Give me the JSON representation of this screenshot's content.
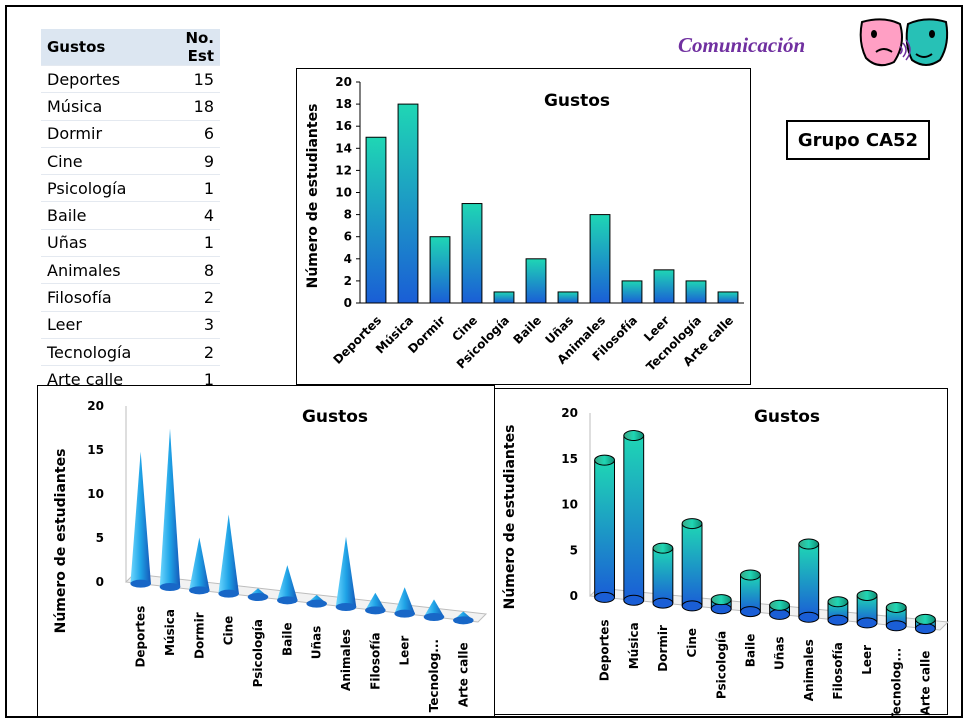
{
  "header": {
    "title": "Comunicación"
  },
  "group_label": "Grupo CA52",
  "table": {
    "headers": [
      "Gustos",
      "No. Est"
    ],
    "rows": [
      [
        "Deportes",
        "15"
      ],
      [
        "Música",
        "18"
      ],
      [
        "Dormir",
        "6"
      ],
      [
        "Cine",
        "9"
      ],
      [
        "Psicología",
        "1"
      ],
      [
        "Baile",
        "4"
      ],
      [
        "Uñas",
        "1"
      ],
      [
        "Animales",
        "8"
      ],
      [
        "Filosofía",
        "2"
      ],
      [
        "Leer",
        "3"
      ],
      [
        "Tecnología",
        "2"
      ],
      [
        "Arte calle",
        "1"
      ]
    ]
  },
  "colors": {
    "bar_top": "#1fd6b4",
    "bar_bottom": "#1a5ed6",
    "table_header": "#dce6f1",
    "accent": "#7030a0"
  },
  "icons": [
    "comedy-drama-masks-icon"
  ],
  "chart_data": [
    {
      "type": "bar",
      "title": "Gustos",
      "xlabel": "",
      "ylabel": "Número de estudiantes",
      "categories": [
        "Deportes",
        "Música",
        "Dormir",
        "Cine",
        "Psicología",
        "Baile",
        "Uñas",
        "Animales",
        "Filosofía",
        "Leer",
        "Tecnología",
        "Arte calle"
      ],
      "values": [
        15,
        18,
        6,
        9,
        1,
        4,
        1,
        8,
        2,
        3,
        2,
        1
      ],
      "yticks": [
        "0",
        "2",
        "4",
        "6",
        "8",
        "10",
        "12",
        "14",
        "16",
        "18",
        "20"
      ],
      "ylim": [
        0,
        20
      ],
      "grid": false,
      "legend": "none"
    },
    {
      "type": "bar",
      "style": "3d-cone",
      "title": "Gustos",
      "xlabel": "",
      "ylabel": "Número de estudiantes",
      "categories": [
        "Deportes",
        "Música",
        "Dormir",
        "Cine",
        "Psicología",
        "Baile",
        "Uñas",
        "Animales",
        "Filosofía",
        "Leer",
        "Tecnolog...",
        "Arte calle"
      ],
      "values": [
        15,
        18,
        6,
        9,
        1,
        4,
        1,
        8,
        2,
        3,
        2,
        1
      ],
      "yticks": [
        "0",
        "5",
        "10",
        "15",
        "20"
      ],
      "ylim": [
        0,
        20
      ],
      "grid": false,
      "legend": "none"
    },
    {
      "type": "bar",
      "style": "3d-cylinder",
      "title": "Gustos",
      "xlabel": "",
      "ylabel": "Número de estudiantes",
      "categories": [
        "Deportes",
        "Música",
        "Dormir",
        "Cine",
        "Psicología",
        "Baile",
        "Uñas",
        "Animales",
        "Filosofía",
        "Leer",
        "Tecnolog...",
        "Arte calle"
      ],
      "values": [
        15,
        18,
        6,
        9,
        1,
        4,
        1,
        8,
        2,
        3,
        2,
        1
      ],
      "yticks": [
        "0",
        "5",
        "10",
        "15",
        "20"
      ],
      "ylim": [
        0,
        20
      ],
      "grid": false,
      "legend": "none"
    }
  ]
}
